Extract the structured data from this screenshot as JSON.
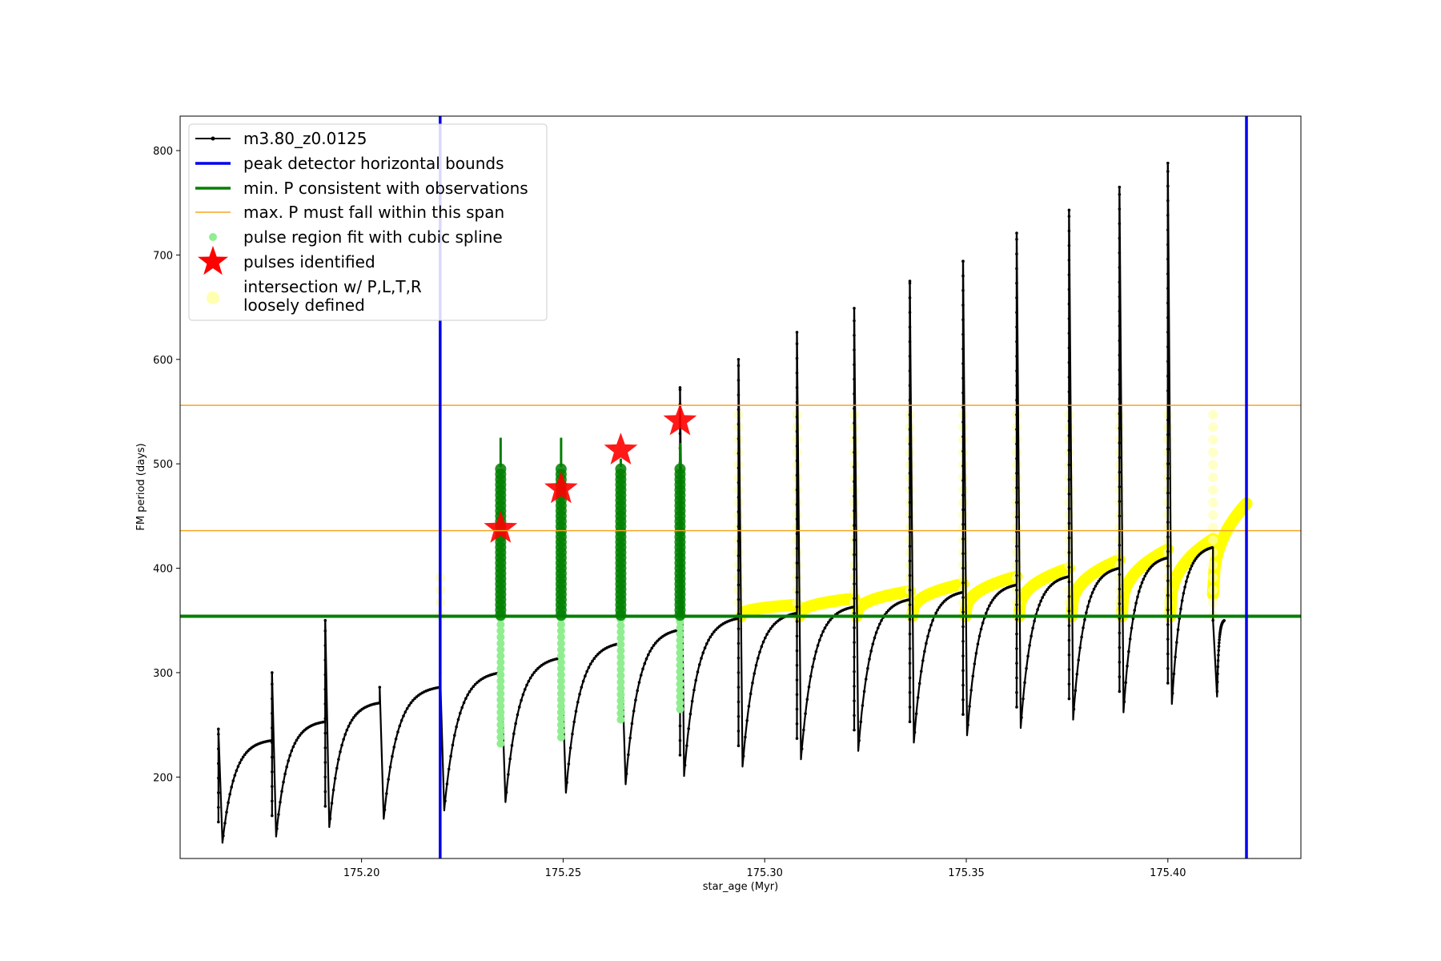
{
  "chart_data": {
    "type": "line",
    "xlabel": "star_age (Myr)",
    "ylabel": "FM period (days)",
    "xlim": [
      175.155,
      175.433
    ],
    "ylim": [
      122,
      833
    ],
    "xticks": [
      175.2,
      175.25,
      175.3,
      175.35,
      175.4
    ],
    "xtick_labels": [
      "175.20",
      "175.25",
      "175.30",
      "175.35",
      "175.40"
    ],
    "yticks": [
      200,
      300,
      400,
      500,
      600,
      700,
      800
    ],
    "ytick_labels": [
      "200",
      "300",
      "400",
      "500",
      "600",
      "700",
      "800"
    ],
    "grid": false,
    "legend_position": "top-left",
    "series": [
      {
        "name": "m3.80_z0.0125",
        "color": "#000000",
        "style": "line-with-dots",
        "cycles": [
          {
            "start": 175.1645,
            "trough": 175.1655,
            "min": 137,
            "end": 175.1778,
            "plateau": 235,
            "spike": 246
          },
          {
            "start": 175.1778,
            "trough": 175.1788,
            "min": 143,
            "end": 175.191,
            "plateau": 253,
            "spike": 300
          },
          {
            "start": 175.191,
            "trough": 175.192,
            "min": 152,
            "end": 175.2045,
            "plateau": 271,
            "spike": 350
          },
          {
            "start": 175.2045,
            "trough": 175.2055,
            "min": 160,
            "end": 175.2195,
            "plateau": 286,
            "spike": 286
          },
          {
            "start": 175.2195,
            "trough": 175.2205,
            "min": 168,
            "end": 175.2345,
            "plateau": 300,
            "spike": 300
          },
          {
            "start": 175.2345,
            "trough": 175.2357,
            "min": 176,
            "end": 175.2495,
            "plateau": 314,
            "spike": 314
          },
          {
            "start": 175.2495,
            "trough": 175.2507,
            "min": 185,
            "end": 175.2643,
            "plateau": 328,
            "spike": 328
          },
          {
            "start": 175.2643,
            "trough": 175.2655,
            "min": 193,
            "end": 175.279,
            "plateau": 341,
            "spike": 341
          },
          {
            "start": 175.279,
            "trough": 175.28,
            "min": 201,
            "end": 175.2935,
            "plateau": 352,
            "spike": 573
          },
          {
            "start": 175.2935,
            "trough": 175.2945,
            "min": 210,
            "end": 175.308,
            "plateau": 357,
            "spike": 600
          },
          {
            "start": 175.308,
            "trough": 175.309,
            "min": 217,
            "end": 175.3222,
            "plateau": 363,
            "spike": 626
          },
          {
            "start": 175.3222,
            "trough": 175.3232,
            "min": 225,
            "end": 175.336,
            "plateau": 370,
            "spike": 649
          },
          {
            "start": 175.336,
            "trough": 175.337,
            "min": 233,
            "end": 175.3492,
            "plateau": 377,
            "spike": 675
          },
          {
            "start": 175.3492,
            "trough": 175.3502,
            "min": 240,
            "end": 175.3625,
            "plateau": 384,
            "spike": 694
          },
          {
            "start": 175.3625,
            "trough": 175.3635,
            "min": 247,
            "end": 175.3755,
            "plateau": 392,
            "spike": 721
          },
          {
            "start": 175.3755,
            "trough": 175.3765,
            "min": 255,
            "end": 175.388,
            "plateau": 400,
            "spike": 743
          },
          {
            "start": 175.388,
            "trough": 175.389,
            "min": 262,
            "end": 175.4,
            "plateau": 410,
            "spike": 765
          },
          {
            "start": 175.4,
            "trough": 175.401,
            "min": 270,
            "end": 175.4112,
            "plateau": 420,
            "spike": 788
          },
          {
            "start": 175.4112,
            "trough": 175.4122,
            "min": 277,
            "end": 175.414,
            "plateau": 350,
            "spike": 350
          }
        ]
      },
      {
        "name": "peak detector horizontal bounds",
        "color": "#0000ee",
        "style": "vline",
        "x": [
          175.2195,
          175.4195
        ]
      },
      {
        "name": "min. P consistent with observations",
        "color": "#008000",
        "style": "hline",
        "y": 354
      },
      {
        "name": "max. P must fall within this span",
        "color": "#f5a623",
        "style": "hline",
        "y": [
          436,
          556
        ]
      },
      {
        "name": "pulse region fit with cubic spline",
        "color": "#90ee90",
        "dark_color": "#008000",
        "style": "points",
        "x": [
          175.2345,
          175.2495,
          175.2643,
          175.279
        ],
        "low": [
          232,
          238,
          255,
          265
        ],
        "dark_low": [
          355,
          355,
          355,
          355
        ],
        "dark_high": [
          497,
          497,
          497,
          497
        ],
        "peak": [
          525,
          525,
          505,
          520
        ]
      },
      {
        "name": "pulses identified",
        "color": "#ff0000",
        "style": "stars",
        "x": [
          175.2345,
          175.2495,
          175.2643,
          175.279
        ],
        "y": [
          438,
          476,
          513,
          541
        ]
      },
      {
        "name": "intersection w/ P,L,T,R\nloosely defined",
        "color": "#ffff00",
        "pale_color": "#ffffb0",
        "style": "points",
        "pale_columns": [
          {
            "x": 175.2195,
            "low": 355,
            "high": 400
          },
          {
            "x": 175.2935,
            "low": 355,
            "high": 555
          },
          {
            "x": 175.308,
            "low": 355,
            "high": 555
          },
          {
            "x": 175.3222,
            "low": 355,
            "high": 555
          },
          {
            "x": 175.336,
            "low": 355,
            "high": 555
          },
          {
            "x": 175.3492,
            "low": 355,
            "high": 555
          },
          {
            "x": 175.3625,
            "low": 355,
            "high": 555
          },
          {
            "x": 175.3755,
            "low": 355,
            "high": 555
          },
          {
            "x": 175.388,
            "low": 355,
            "high": 555
          },
          {
            "x": 175.4,
            "low": 355,
            "high": 555
          },
          {
            "x": 175.4112,
            "low": 355,
            "high": 555
          }
        ]
      }
    ]
  }
}
